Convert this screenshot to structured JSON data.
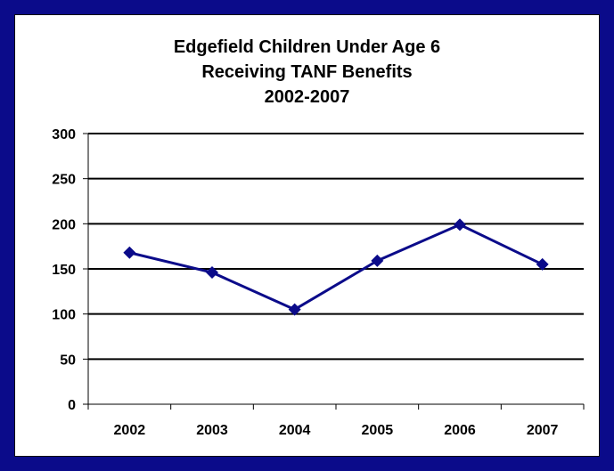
{
  "chart_data": {
    "type": "line",
    "title_lines": [
      "Edgefield Children Under Age 6",
      "Receiving TANF Benefits",
      "2002-2007"
    ],
    "categories": [
      "2002",
      "2003",
      "2004",
      "2005",
      "2006",
      "2007"
    ],
    "series": [
      {
        "values": [
          168,
          146,
          105,
          159,
          199,
          155
        ]
      }
    ],
    "ylim": [
      0,
      300
    ],
    "yticks": [
      "0",
      "50",
      "100",
      "150",
      "200",
      "250",
      "300"
    ],
    "grid": true,
    "legend": "none",
    "xlabel": "",
    "ylabel": ""
  },
  "colors": {
    "border": "#0b0b8a",
    "series_line": "#0b0b8a",
    "gridline": "#000000"
  }
}
